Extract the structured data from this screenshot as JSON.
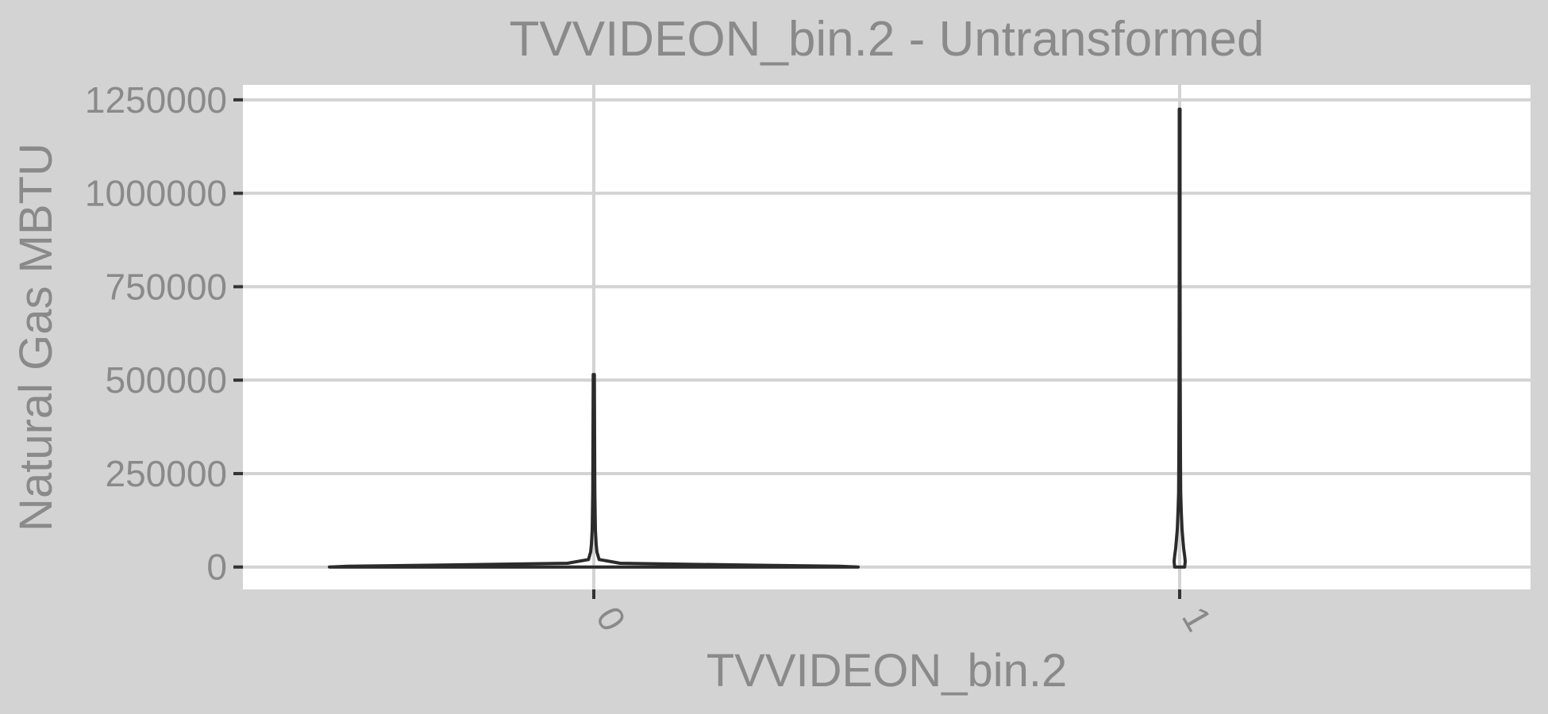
{
  "chart_data": {
    "type": "violin",
    "title": "TVVIDEON_bin.2 - Untransformed",
    "xlabel": "TVVIDEON_bin.2",
    "ylabel": "Natural Gas MBTU",
    "categories": [
      "0",
      "1"
    ],
    "ylim": [
      -60000,
      1290000
    ],
    "yticks": [
      0,
      250000,
      500000,
      750000,
      1000000,
      1250000
    ],
    "grid": true,
    "legend": "none",
    "series": [
      {
        "category": "0",
        "min": 0,
        "max": 515000,
        "profile": [
          [
            0,
            1.0
          ],
          [
            2000,
            0.93
          ],
          [
            5000,
            0.6
          ],
          [
            10000,
            0.1
          ],
          [
            20000,
            0.02
          ],
          [
            40000,
            0.012
          ],
          [
            60000,
            0.009
          ],
          [
            100000,
            0.006
          ],
          [
            200000,
            0.004
          ],
          [
            350000,
            0.003
          ],
          [
            515000,
            0.002
          ]
        ]
      },
      {
        "category": "1",
        "min": 0,
        "max": 1225000,
        "profile": [
          [
            0,
            0.019
          ],
          [
            15000,
            0.021
          ],
          [
            30000,
            0.019
          ],
          [
            50000,
            0.015
          ],
          [
            100000,
            0.009
          ],
          [
            150000,
            0.006
          ],
          [
            200000,
            0.004
          ],
          [
            300000,
            0.003
          ],
          [
            500000,
            0.002
          ],
          [
            800000,
            0.0015
          ],
          [
            1225000,
            0.0015
          ]
        ]
      }
    ],
    "colors": {
      "background": "#d3d3d3",
      "panel": "#ffffff",
      "grid": "#d3d3d3",
      "text": "#8a8a8a",
      "outline": "#2b2b2b"
    }
  }
}
